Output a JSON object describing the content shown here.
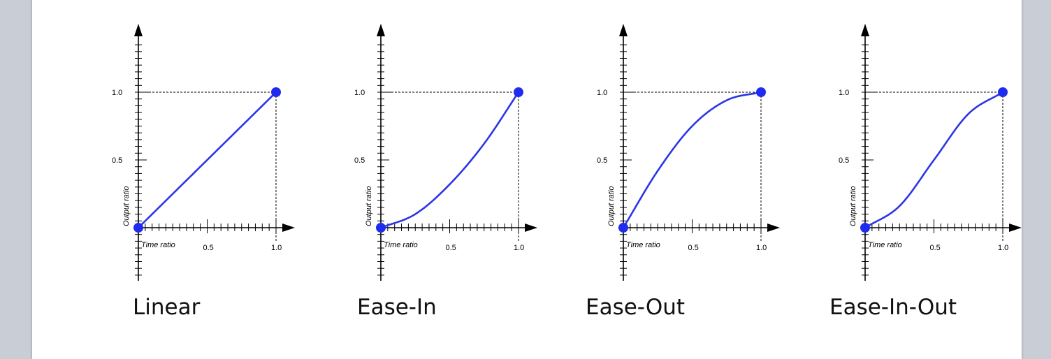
{
  "colors": {
    "curve": "#2b36e6",
    "point": "#1f2cf0",
    "axis": "#000000",
    "background": "#ffffff",
    "frame": "#c9cdd6"
  },
  "chart_data": [
    {
      "type": "line",
      "title": "Linear",
      "xlabel": "Time ratio",
      "ylabel": "Output ratio",
      "xticklabels": [
        "0.5",
        "1.0"
      ],
      "yticklabels": [
        "0.5",
        "1.0"
      ],
      "xlim": [
        0,
        1.0
      ],
      "ylim": [
        0,
        1.0
      ],
      "grid": false,
      "series": [
        {
          "x": [
            0,
            0.25,
            0.5,
            0.75,
            1.0
          ],
          "y": [
            0,
            0.25,
            0.5,
            0.75,
            1.0
          ]
        }
      ],
      "endpoints": [
        [
          0,
          0
        ],
        [
          1.0,
          1.0
        ]
      ]
    },
    {
      "type": "line",
      "title": "Ease-In",
      "xlabel": "Time ratio",
      "ylabel": "Output ratio",
      "xticklabels": [
        "0.5",
        "1.0"
      ],
      "yticklabels": [
        "0.5",
        "1.0"
      ],
      "xlim": [
        0,
        1.0
      ],
      "ylim": [
        0,
        1.0
      ],
      "grid": false,
      "series": [
        {
          "x": [
            0,
            0.25,
            0.5,
            0.75,
            1.0
          ],
          "y": [
            0,
            0.1,
            0.32,
            0.62,
            1.0
          ]
        }
      ],
      "endpoints": [
        [
          0,
          0
        ],
        [
          1.0,
          1.0
        ]
      ]
    },
    {
      "type": "line",
      "title": "Ease-Out",
      "xlabel": "Time ratio",
      "ylabel": "Output ratio",
      "xticklabels": [
        "0.5",
        "1.0"
      ],
      "yticklabels": [
        "0.5",
        "1.0"
      ],
      "xlim": [
        0,
        1.0
      ],
      "ylim": [
        0,
        1.0
      ],
      "grid": false,
      "series": [
        {
          "x": [
            0,
            0.25,
            0.5,
            0.75,
            1.0
          ],
          "y": [
            0,
            0.42,
            0.75,
            0.94,
            1.0
          ]
        }
      ],
      "endpoints": [
        [
          0,
          0
        ],
        [
          1.0,
          1.0
        ]
      ]
    },
    {
      "type": "line",
      "title": "Ease-In-Out",
      "xlabel": "Time ratio",
      "ylabel": "Output ratio",
      "xticklabels": [
        "0.5",
        "1.0"
      ],
      "yticklabels": [
        "0.5",
        "1.0"
      ],
      "xlim": [
        0,
        1.0
      ],
      "ylim": [
        0,
        1.0
      ],
      "grid": false,
      "series": [
        {
          "x": [
            0,
            0.25,
            0.5,
            0.75,
            1.0
          ],
          "y": [
            0,
            0.16,
            0.5,
            0.84,
            1.0
          ]
        }
      ],
      "endpoints": [
        [
          0,
          0
        ],
        [
          1.0,
          1.0
        ]
      ]
    }
  ]
}
